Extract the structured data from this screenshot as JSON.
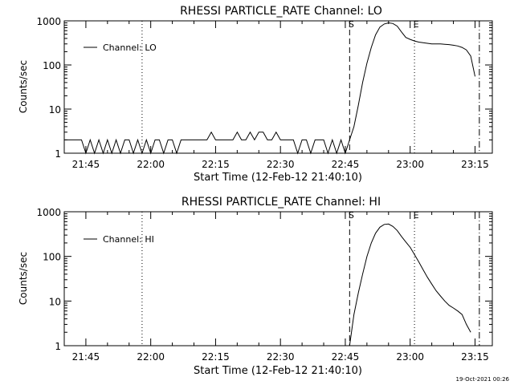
{
  "footer": {
    "timestamp": "19-Oct-2021 00:26"
  },
  "chart_data": [
    {
      "type": "line",
      "title": "RHESSI PARTICLE_RATE Channel: LO",
      "xlabel": "Start Time (12-Feb-12 21:40:10)",
      "ylabel": "Counts/sec",
      "y_scale": "log",
      "ylim": [
        1,
        1000
      ],
      "xlim": [
        "21:40",
        "23:19"
      ],
      "x_tick_labels": [
        "21:45",
        "22:00",
        "22:15",
        "22:30",
        "22:45",
        "23:00",
        "23:15"
      ],
      "y_tick_labels": [
        "1",
        "10",
        "100",
        "1000"
      ],
      "legend": {
        "placement": "top-left",
        "entries": [
          "Channel: LO"
        ]
      },
      "markers": [
        {
          "type": "dotted",
          "x": "21:58"
        },
        {
          "type": "dashed",
          "x": "22:46",
          "label": "S"
        },
        {
          "type": "dotted",
          "x": "23:01",
          "label": "E"
        },
        {
          "type": "dashdot",
          "x": "23:16"
        }
      ],
      "series": [
        {
          "name": "Channel: LO",
          "x": [
            "21:40",
            "21:44",
            "21:45",
            "21:46",
            "21:47",
            "21:48",
            "21:49",
            "21:50",
            "21:51",
            "21:52",
            "21:53",
            "21:54",
            "21:55",
            "21:56",
            "21:57",
            "21:58",
            "21:59",
            "22:00",
            "22:01",
            "22:02",
            "22:03",
            "22:04",
            "22:05",
            "22:06",
            "22:07",
            "22:08",
            "22:09",
            "22:10",
            "22:11",
            "22:12",
            "22:13",
            "22:14",
            "22:15",
            "22:16",
            "22:17",
            "22:18",
            "22:19",
            "22:20",
            "22:21",
            "22:22",
            "22:23",
            "22:24",
            "22:25",
            "22:26",
            "22:27",
            "22:28",
            "22:29",
            "22:30",
            "22:31",
            "22:32",
            "22:33",
            "22:34",
            "22:35",
            "22:36",
            "22:37",
            "22:38",
            "22:39",
            "22:40",
            "22:41",
            "22:42",
            "22:43",
            "22:44",
            "22:45",
            "22:46",
            "22:47",
            "22:48",
            "22:49",
            "22:50",
            "22:51",
            "22:52",
            "22:53",
            "22:54",
            "22:55",
            "22:56",
            "22:57",
            "22:58",
            "22:59",
            "23:00",
            "23:01",
            "23:02",
            "23:03",
            "23:04",
            "23:05",
            "23:06",
            "23:07",
            "23:08",
            "23:09",
            "23:10",
            "23:11",
            "23:12",
            "23:13",
            "23:14",
            "23:15"
          ],
          "values": [
            2,
            2,
            1,
            2,
            1,
            2,
            1,
            2,
            1,
            2,
            1,
            2,
            2,
            1,
            2,
            1,
            2,
            1,
            2,
            2,
            1,
            2,
            2,
            1,
            2,
            2,
            2,
            2,
            2,
            2,
            2,
            3,
            2,
            2,
            2,
            2,
            2,
            3,
            2,
            2,
            3,
            2,
            3,
            3,
            2,
            2,
            3,
            2,
            2,
            2,
            2,
            1,
            2,
            2,
            1,
            2,
            2,
            2,
            1,
            2,
            1,
            2,
            1,
            2,
            4,
            12,
            40,
            110,
            250,
            480,
            720,
            850,
            900,
            870,
            760,
            560,
            420,
            380,
            350,
            330,
            320,
            310,
            300,
            300,
            300,
            295,
            290,
            280,
            270,
            250,
            220,
            160,
            55
          ]
        }
      ]
    },
    {
      "type": "line",
      "title": "RHESSI PARTICLE_RATE Channel: HI",
      "xlabel": "Start Time (12-Feb-12 21:40:10)",
      "ylabel": "Counts/sec",
      "y_scale": "log",
      "ylim": [
        1,
        1000
      ],
      "xlim": [
        "21:40",
        "23:19"
      ],
      "x_tick_labels": [
        "21:45",
        "22:00",
        "22:15",
        "22:30",
        "22:45",
        "23:00",
        "23:15"
      ],
      "y_tick_labels": [
        "1",
        "10",
        "100",
        "1000"
      ],
      "legend": {
        "placement": "top-left",
        "entries": [
          "Channel: HI"
        ]
      },
      "markers": [
        {
          "type": "dotted",
          "x": "21:58"
        },
        {
          "type": "dashed",
          "x": "22:46",
          "label": "S"
        },
        {
          "type": "dotted",
          "x": "23:01",
          "label": "E"
        },
        {
          "type": "dashdot",
          "x": "23:16"
        }
      ],
      "series": [
        {
          "name": "Channel: HI",
          "x": [
            "22:46",
            "22:47",
            "22:48",
            "22:49",
            "22:50",
            "22:51",
            "22:52",
            "22:53",
            "22:54",
            "22:55",
            "22:56",
            "22:57",
            "22:58",
            "22:59",
            "23:00",
            "23:01",
            "23:02",
            "23:03",
            "23:04",
            "23:05",
            "23:06",
            "23:07",
            "23:08",
            "23:09",
            "23:10",
            "23:11",
            "23:12",
            "23:13",
            "23:14"
          ],
          "values": [
            1,
            5,
            15,
            40,
            100,
            200,
            330,
            450,
            520,
            530,
            470,
            380,
            280,
            210,
            160,
            110,
            75,
            50,
            34,
            24,
            17,
            13,
            10,
            8,
            7,
            6,
            5,
            3,
            2
          ]
        }
      ]
    }
  ]
}
